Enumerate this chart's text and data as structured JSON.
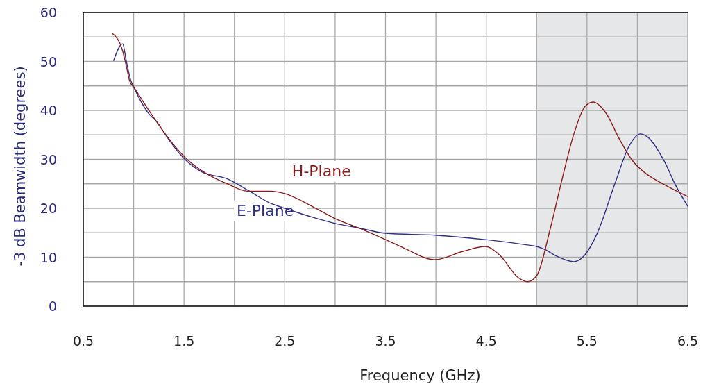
{
  "chart_data": {
    "type": "line",
    "xlabel": "Frequency (GHz)",
    "ylabel": "-3 dB Beamwidth (degrees)",
    "xlim": [
      0.5,
      6.5
    ],
    "ylim": [
      0,
      60
    ],
    "xticks": [
      0.5,
      {
        "value": 1,
        "label": null
      },
      1.5,
      {
        "value": 2,
        "label": null
      },
      2.5,
      {
        "value": 3,
        "label": null
      },
      3.5,
      {
        "value": 4,
        "label": null
      },
      4.5,
      {
        "value": 5,
        "label": null
      },
      5.5,
      {
        "value": 6,
        "label": null
      },
      6.5
    ],
    "yticks": [
      0,
      {
        "value": 5,
        "label": null
      },
      10,
      {
        "value": 15,
        "label": null
      },
      20,
      {
        "value": 25,
        "label": null
      },
      30,
      {
        "value": 35,
        "label": null
      },
      40,
      {
        "value": 45,
        "label": null
      },
      50,
      {
        "value": 55,
        "label": null
      },
      60
    ],
    "grid": true,
    "marker": "none",
    "line_style": "solid",
    "bands": [
      {
        "axis": "x",
        "from": 5,
        "to": 6.5,
        "color": "#e6e7e9"
      }
    ],
    "series": [
      {
        "name": "E-Plane",
        "color": "#2e3085",
        "x": [
          0.8,
          0.89,
          0.93,
          0.97,
          1.0,
          1.14,
          1.24,
          1.31,
          1.49,
          1.67,
          1.93,
          2.15,
          2.36,
          2.5,
          2.77,
          3.0,
          3.23,
          3.5,
          3.99,
          4.49,
          4.91,
          5.0,
          5.09,
          5.18,
          5.37,
          5.48,
          5.6,
          5.78,
          5.92,
          6.03,
          6.1,
          6.26,
          6.38,
          6.5
        ],
        "values": [
          50.1,
          53.6,
          49.8,
          46.2,
          44.8,
          39.6,
          37.4,
          35.2,
          30.4,
          27.5,
          26,
          23.5,
          21,
          20,
          18.2,
          16.9,
          16,
          14.9,
          14.5,
          13.6,
          12.5,
          12.2,
          11.5,
          10.4,
          9.1,
          10.5,
          14.8,
          25.2,
          32.8,
          35.2,
          34.6,
          29.9,
          24.7,
          20.4
        ]
      },
      {
        "name": "H-Plane",
        "color": "#8b1c1c",
        "x": [
          0.79,
          0.89,
          0.93,
          0.96,
          1.0,
          1.17,
          1.31,
          1.51,
          1.72,
          1.93,
          2.13,
          2.36,
          2.5,
          2.77,
          3.0,
          3.23,
          3.5,
          3.69,
          3.99,
          4.27,
          4.49,
          4.63,
          4.82,
          4.91,
          5.0,
          5.14,
          5.25,
          5.37,
          5.48,
          5.56,
          5.69,
          5.82,
          5.96,
          6.06,
          6.28,
          6.5
        ],
        "values": [
          55.7,
          52.2,
          48.8,
          46,
          44.8,
          39.4,
          35.3,
          30.4,
          27.1,
          25,
          23.5,
          23.5,
          23,
          20.4,
          17.9,
          16,
          13.6,
          11.8,
          9.5,
          11.2,
          12.2,
          10.5,
          5.8,
          5,
          6.2,
          16.2,
          25.7,
          35.2,
          40.8,
          41.7,
          39.4,
          34.2,
          29.5,
          27.5,
          24.7,
          22.4
        ]
      }
    ]
  }
}
